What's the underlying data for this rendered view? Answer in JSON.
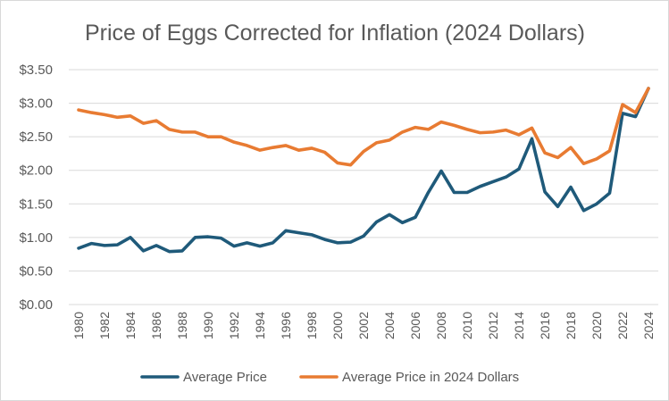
{
  "chart_data": {
    "type": "line",
    "title": "Price of Eggs Corrected for Inflation (2024 Dollars)",
    "xlabel": "",
    "ylabel": "",
    "ylim": [
      0,
      3.5
    ],
    "y_ticks": [
      "$0.00",
      "$0.50",
      "$1.00",
      "$1.50",
      "$2.00",
      "$2.50",
      "$3.00",
      "$3.50"
    ],
    "y_tick_values": [
      0,
      0.5,
      1.0,
      1.5,
      2.0,
      2.5,
      3.0,
      3.5
    ],
    "x_tick_labels": [
      "1980",
      "1982",
      "1984",
      "1986",
      "1988",
      "1990",
      "1992",
      "1994",
      "1996",
      "1998",
      "2000",
      "2002",
      "2004",
      "2006",
      "2008",
      "2010",
      "2012",
      "2014",
      "2016",
      "2018",
      "2020",
      "2022",
      "2024"
    ],
    "grid": "horizontal",
    "legend_position": "bottom",
    "x": [
      1980,
      1981,
      1982,
      1983,
      1984,
      1985,
      1986,
      1987,
      1988,
      1989,
      1990,
      1991,
      1992,
      1993,
      1994,
      1995,
      1996,
      1997,
      1998,
      1999,
      2000,
      2001,
      2002,
      2003,
      2004,
      2005,
      2006,
      2007,
      2008,
      2009,
      2010,
      2011,
      2012,
      2013,
      2014,
      2015,
      2016,
      2017,
      2018,
      2019,
      2020,
      2021,
      2022,
      2023,
      2024
    ],
    "series": [
      {
        "name": "Average Price",
        "color": "#1f5a7a",
        "values": [
          0.84,
          0.91,
          0.88,
          0.89,
          1.0,
          0.8,
          0.88,
          0.79,
          0.8,
          1.0,
          1.01,
          0.99,
          0.87,
          0.92,
          0.87,
          0.92,
          1.1,
          1.07,
          1.04,
          0.97,
          0.92,
          0.93,
          1.02,
          1.23,
          1.34,
          1.22,
          1.3,
          1.67,
          1.99,
          1.67,
          1.67,
          1.76,
          1.83,
          1.9,
          2.02,
          2.47,
          1.68,
          1.46,
          1.75,
          1.4,
          1.5,
          1.66,
          2.85,
          2.8,
          3.22
        ]
      },
      {
        "name": "Average Price in 2024 Dollars",
        "color": "#e87b32",
        "values": [
          2.9,
          2.86,
          2.83,
          2.79,
          2.81,
          2.7,
          2.74,
          2.61,
          2.57,
          2.57,
          2.5,
          2.5,
          2.42,
          2.37,
          2.3,
          2.34,
          2.37,
          2.3,
          2.33,
          2.27,
          2.11,
          2.08,
          2.28,
          2.41,
          2.45,
          2.57,
          2.64,
          2.61,
          2.72,
          2.67,
          2.61,
          2.56,
          2.57,
          2.6,
          2.53,
          2.63,
          2.26,
          2.19,
          2.34,
          2.1,
          2.17,
          2.29,
          2.98,
          2.86,
          3.22
        ]
      }
    ]
  }
}
